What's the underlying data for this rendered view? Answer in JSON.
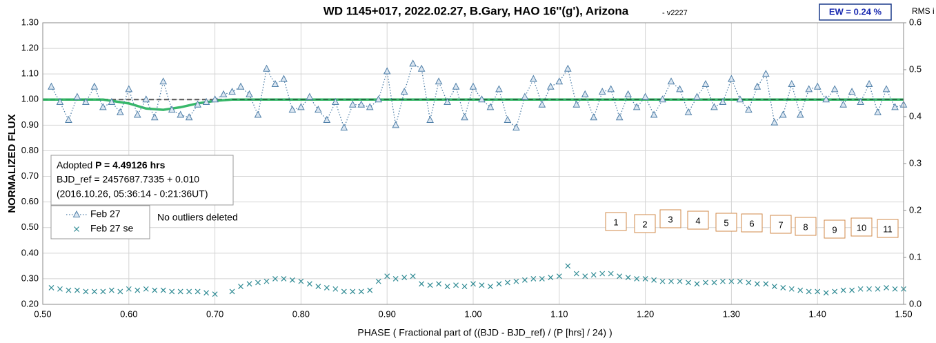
{
  "chart_data": {
    "type": "scatter",
    "title": "WD 1145+017, 2022.02.27, B.Gary, HAO 16''(g'), Arizona",
    "version": "- v2227",
    "ew": "EW = 0.24 %",
    "y2_label": "RMS i",
    "ylabel": "NORMALIZED FLUX",
    "xlabel": "PHASE ( Fractional part of ((BJD - BJD_ref) / (P [hrs] / 24) )",
    "info": {
      "adopted": "Adopted",
      "period": "P = 4.49126 hrs",
      "bjd": "BJD_ref = 2457687.7335 + 0.010",
      "date": "(2016.10.26, 05:36:14 - 0:21:36UT)"
    },
    "note": "No outliers deleted",
    "annotations": [
      "1",
      "2",
      "3",
      "4",
      "5",
      "6",
      "7",
      "8",
      "9",
      "10",
      "11"
    ],
    "xlim": [
      0.5,
      1.5
    ],
    "xticks": [
      {
        "value": 0.5,
        "label": "0.50"
      },
      {
        "value": 0.6,
        "label": "0.60"
      },
      {
        "value": 0.7,
        "label": "0.70"
      },
      {
        "value": 0.8,
        "label": "0.80"
      },
      {
        "value": 0.9,
        "label": "0.90"
      },
      {
        "value": 1.0,
        "label": "1.00"
      },
      {
        "value": 1.1,
        "label": "1.10"
      },
      {
        "value": 1.2,
        "label": "1.20"
      },
      {
        "value": 1.3,
        "label": "1.30"
      },
      {
        "value": 1.4,
        "label": "1.40"
      },
      {
        "value": 1.5,
        "label": "1.50"
      }
    ],
    "ylim": [
      0.2,
      1.3
    ],
    "yticks": [
      {
        "value": 0.2,
        "label": "0.20"
      },
      {
        "value": 0.3,
        "label": "0.30"
      },
      {
        "value": 0.4,
        "label": "0.40"
      },
      {
        "value": 0.5,
        "label": "0.50"
      },
      {
        "value": 0.6,
        "label": "0.60"
      },
      {
        "value": 0.7,
        "label": "0.70"
      },
      {
        "value": 0.8,
        "label": "0.80"
      },
      {
        "value": 0.9,
        "label": "0.90"
      },
      {
        "value": 1.0,
        "label": "1.00"
      },
      {
        "value": 1.1,
        "label": "1.10"
      },
      {
        "value": 1.2,
        "label": "1.20"
      },
      {
        "value": 1.3,
        "label": "1.30"
      }
    ],
    "y2lim": [
      0,
      0.6
    ],
    "y2ticks": [
      {
        "value": 0,
        "label": "0.0"
      },
      0.1,
      0.2,
      0.3,
      0.4,
      0.5,
      0.6
    ],
    "grid": true,
    "x": [
      0.51,
      0.52,
      0.53,
      0.54,
      0.55,
      0.56,
      0.57,
      0.58,
      0.59,
      0.6,
      0.61,
      0.62,
      0.63,
      0.64,
      0.65,
      0.66,
      0.67,
      0.68,
      0.69,
      0.7,
      0.71,
      0.72,
      0.73,
      0.74,
      0.75,
      0.76,
      0.77,
      0.78,
      0.79,
      0.8,
      0.81,
      0.82,
      0.83,
      0.84,
      0.85,
      0.86,
      0.87,
      0.88,
      0.89,
      0.9,
      0.91,
      0.92,
      0.93,
      0.94,
      0.95,
      0.96,
      0.97,
      0.98,
      0.99,
      1.0,
      1.01,
      1.02,
      1.03,
      1.04,
      1.05,
      1.06,
      1.07,
      1.08,
      1.09,
      1.1,
      1.11,
      1.12,
      1.13,
      1.14,
      1.15,
      1.16,
      1.17,
      1.18,
      1.19,
      1.2,
      1.21,
      1.22,
      1.23,
      1.24,
      1.25,
      1.26,
      1.27,
      1.28,
      1.29,
      1.3,
      1.31,
      1.32,
      1.33,
      1.34,
      1.35,
      1.36,
      1.37,
      1.38,
      1.39,
      1.4,
      1.41,
      1.42,
      1.43,
      1.44,
      1.45,
      1.46,
      1.47,
      1.48,
      1.49,
      1.5
    ],
    "series": [
      {
        "name": "Feb 27",
        "color": "#4f7fa8",
        "marker": "triangle",
        "values": [
          1.05,
          0.99,
          0.92,
          1.01,
          0.99,
          1.05,
          0.97,
          0.99,
          0.95,
          1.04,
          0.94,
          1.0,
          0.93,
          1.07,
          0.96,
          0.94,
          0.93,
          0.98,
          0.99,
          1.0,
          1.02,
          1.03,
          1.05,
          1.02,
          0.94,
          1.12,
          1.06,
          1.08,
          0.96,
          0.97,
          1.01,
          0.96,
          0.92,
          0.99,
          0.89,
          0.98,
          0.98,
          0.97,
          1.0,
          1.11,
          0.9,
          1.03,
          1.14,
          1.12,
          0.92,
          1.07,
          0.99,
          1.05,
          0.93,
          1.05,
          1.0,
          0.97,
          1.04,
          0.92,
          0.89,
          1.01,
          1.08,
          0.98,
          1.05,
          1.07,
          1.12,
          0.98,
          1.02,
          0.93,
          1.03,
          1.04,
          0.93,
          1.02,
          0.97,
          1.01,
          0.94,
          1.0,
          1.07,
          1.04,
          0.95,
          1.01,
          1.06,
          0.97,
          0.99,
          1.08,
          1.0,
          0.96,
          1.05,
          1.1,
          0.91,
          0.94,
          1.06,
          0.94,
          1.04,
          1.05,
          1.0,
          1.04,
          0.98,
          1.03,
          0.99,
          1.06,
          0.95,
          1.04,
          0.97,
          0.98
        ]
      },
      {
        "name": "Feb 27 se",
        "color": "#2e8a93",
        "marker": "x",
        "values": [
          0.265,
          0.26,
          0.255,
          0.255,
          0.25,
          0.25,
          0.25,
          0.255,
          0.25,
          0.26,
          0.255,
          0.26,
          0.255,
          0.255,
          0.25,
          0.25,
          0.25,
          0.25,
          0.245,
          0.24,
          null,
          0.25,
          0.27,
          0.28,
          0.285,
          0.29,
          0.3,
          0.3,
          0.295,
          0.29,
          0.28,
          0.27,
          0.265,
          0.26,
          0.25,
          0.25,
          0.25,
          0.255,
          0.29,
          0.31,
          0.3,
          0.305,
          0.31,
          0.28,
          0.275,
          0.28,
          0.27,
          0.275,
          0.27,
          0.28,
          0.275,
          0.27,
          0.28,
          0.285,
          0.29,
          0.295,
          0.3,
          0.3,
          0.305,
          0.31,
          0.35,
          0.32,
          0.31,
          0.315,
          0.32,
          0.32,
          0.31,
          0.305,
          0.3,
          0.3,
          0.295,
          0.29,
          0.29,
          0.29,
          0.285,
          0.28,
          0.285,
          0.285,
          0.29,
          0.29,
          0.29,
          0.285,
          0.28,
          0.28,
          0.27,
          0.265,
          0.26,
          0.255,
          0.25,
          0.25,
          0.245,
          0.25,
          0.255,
          0.255,
          0.26,
          0.26,
          0.26,
          0.265,
          0.26,
          0.26
        ]
      }
    ],
    "model": {
      "color": "#22b05a",
      "x": [
        0.5,
        0.57,
        0.6,
        0.62,
        0.64,
        0.66,
        0.68,
        0.7,
        0.72,
        1.5
      ],
      "values": [
        1.0,
        1.0,
        0.985,
        0.965,
        0.96,
        0.97,
        0.985,
        0.995,
        1.0,
        1.0
      ]
    },
    "reference": {
      "value": 1.0,
      "color": "#555555"
    }
  }
}
